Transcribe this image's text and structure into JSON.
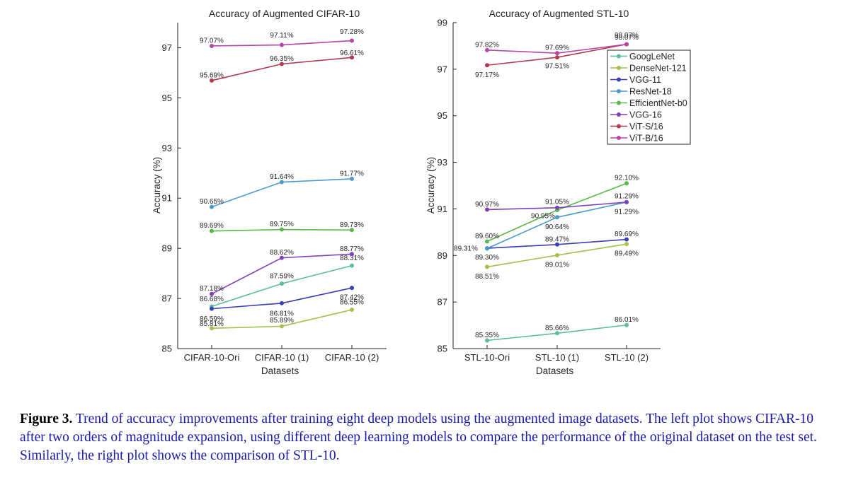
{
  "caption": {
    "label": "Figure 3.",
    "text": " Trend of accuracy improvements after training eight deep models using the augmented image datasets. The left plot shows CIFAR-10 after two orders of magnitude expansion, using different deep learning models to compare the performance of the original dataset on the test set. Similarly, the right plot shows the comparison of STL-10."
  },
  "chart_data": [
    {
      "type": "line",
      "title": "Accuracy of Augmented CIFAR-10",
      "xlabel": "Datasets",
      "ylabel": "Accuracy (%)",
      "categories": [
        "CIFAR-10-Ori",
        "CIFAR-10 (1)",
        "CIFAR-10 (2)"
      ],
      "ylim": [
        85,
        98
      ],
      "yticks": [
        85,
        87,
        89,
        91,
        93,
        95,
        97
      ],
      "grid": false,
      "series": [
        {
          "name": "GoogLeNet",
          "color": "#5cbf9b",
          "values": [
            86.68,
            87.59,
            88.31
          ],
          "labels": [
            "86.68%",
            "87.59%",
            "88.31%"
          ]
        },
        {
          "name": "DenseNet-121",
          "color": "#a4c14d",
          "values": [
            85.81,
            85.89,
            86.55
          ],
          "labels": [
            "85.81%",
            "85.89%",
            "86.55%"
          ]
        },
        {
          "name": "VGG-11",
          "color": "#3b3fb8",
          "values": [
            86.59,
            86.81,
            87.42
          ],
          "labels": [
            "86.59%",
            "86.81%",
            "87.42%"
          ]
        },
        {
          "name": "ResNet-18",
          "color": "#4a9bc6",
          "values": [
            90.65,
            91.64,
            91.77
          ],
          "labels": [
            "90.65%",
            "91.64%",
            "91.77%"
          ]
        },
        {
          "name": "EfficientNet-b0",
          "color": "#5ab84a",
          "values": [
            89.69,
            89.75,
            89.73
          ],
          "labels": [
            "89.69%",
            "89.75%",
            "89.73%"
          ]
        },
        {
          "name": "VGG-16",
          "color": "#8040b8",
          "values": [
            87.18,
            88.62,
            88.77
          ],
          "labels": [
            "87.18%",
            "88.62%",
            "88.77%"
          ]
        },
        {
          "name": "ViT-S/16",
          "color": "#b03a4e",
          "values": [
            95.69,
            96.35,
            96.61
          ],
          "labels": [
            "95.69%",
            "96.35%",
            "96.61%"
          ]
        },
        {
          "name": "ViT-B/16",
          "color": "#b547a8",
          "values": [
            97.07,
            97.11,
            97.28
          ],
          "labels": [
            "97.07%",
            "97.11%",
            "97.28%"
          ]
        }
      ]
    },
    {
      "type": "line",
      "title": "Accuracy of Augmented STL-10",
      "xlabel": "Datasets",
      "ylabel": "Accuracy (%)",
      "categories": [
        "STL-10-Ori",
        "STL-10 (1)",
        "STL-10 (2)"
      ],
      "ylim": [
        85,
        99
      ],
      "yticks": [
        85,
        87,
        89,
        91,
        93,
        95,
        97,
        99
      ],
      "grid": false,
      "legend": "top-right",
      "series": [
        {
          "name": "GoogLeNet",
          "color": "#5cbf9b",
          "values": [
            85.35,
            85.66,
            86.01
          ],
          "labels": [
            "85.35%",
            "85.66%",
            "86.01%"
          ]
        },
        {
          "name": "DenseNet-121",
          "color": "#a4c14d",
          "values": [
            88.51,
            89.01,
            89.49
          ],
          "labels": [
            "88.51%",
            "89.01%",
            "89.49%"
          ]
        },
        {
          "name": "VGG-11",
          "color": "#3b3fb8",
          "values": [
            89.31,
            89.47,
            89.69
          ],
          "labels": [
            "89.31%",
            "89.47%",
            "89.69%"
          ]
        },
        {
          "name": "ResNet-18",
          "color": "#4a9bc6",
          "values": [
            89.3,
            90.64,
            91.29
          ],
          "labels": [
            "89.30%",
            "90.64%",
            "91.29%"
          ]
        },
        {
          "name": "EfficientNet-b0",
          "color": "#5ab84a",
          "values": [
            89.6,
            90.95,
            92.1
          ],
          "labels": [
            "89.60%",
            "90.95%",
            "92.10%"
          ]
        },
        {
          "name": "VGG-16",
          "color": "#8040b8",
          "values": [
            90.97,
            91.05,
            91.29
          ],
          "labels": [
            "90.97%",
            "91.05%",
            "91.29%"
          ]
        },
        {
          "name": "ViT-S/16",
          "color": "#b03a4e",
          "values": [
            97.17,
            97.51,
            98.07
          ],
          "labels": [
            "97.17%",
            "97.51%",
            "98.07%"
          ]
        },
        {
          "name": "ViT-B/16",
          "color": "#b547a8",
          "values": [
            97.82,
            97.69,
            98.07
          ],
          "labels": [
            "97.82%",
            "97.69%",
            "98.07%"
          ]
        }
      ]
    }
  ]
}
